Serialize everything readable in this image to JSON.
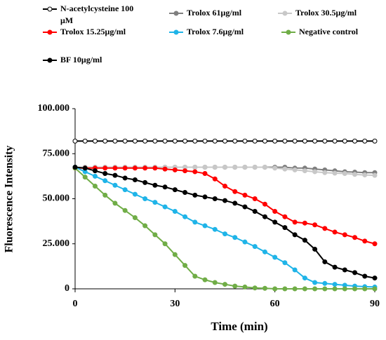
{
  "chart_data": {
    "type": "line",
    "ylabel": "Fluorescence Intensity",
    "xlabel": "Time (min)",
    "xlim": [
      0,
      90
    ],
    "xticks": [
      0,
      30,
      60,
      90
    ],
    "ylim": [
      0,
      100000
    ],
    "yticks": [
      0,
      {
        "value": 25000,
        "label": "25.000"
      },
      {
        "value": 50000,
        "label": "50.000"
      },
      {
        "value": 75000,
        "label": "75.000"
      },
      {
        "value": 100000,
        "label": "100.000"
      }
    ],
    "x": [
      0,
      3,
      6,
      9,
      12,
      15,
      18,
      21,
      24,
      27,
      30,
      33,
      36,
      39,
      42,
      45,
      48,
      51,
      54,
      57,
      60,
      63,
      66,
      69,
      72,
      75,
      78,
      81,
      84,
      87,
      90
    ],
    "series": [
      {
        "name": "N-acetylcysteine 100 μM",
        "color": "#ffffff",
        "values": [
          82000,
          82000,
          82000,
          82000,
          82000,
          82000,
          82000,
          82000,
          82000,
          82000,
          82000,
          82000,
          82000,
          82000,
          82000,
          82000,
          82000,
          82000,
          82000,
          82000,
          82000,
          82000,
          82000,
          82000,
          82000,
          82000,
          82000,
          82000,
          82000,
          82000,
          82000
        ]
      },
      {
        "name": "Trolox 61μg/ml",
        "color": "#7f7f7f",
        "values": [
          67500,
          67500,
          67500,
          67500,
          67500,
          67500,
          67500,
          67500,
          67500,
          67500,
          67500,
          67500,
          67500,
          67500,
          67500,
          67500,
          67500,
          67500,
          67500,
          67500,
          67500,
          67500,
          67000,
          67000,
          66500,
          66000,
          65500,
          65000,
          64800,
          64500,
          64500
        ]
      },
      {
        "name": "Trolox 30.5μg/ml",
        "color": "#c8c8c8",
        "values": [
          67500,
          67500,
          67500,
          67500,
          67500,
          67500,
          67500,
          67500,
          67500,
          67500,
          67500,
          67500,
          67500,
          67500,
          67500,
          67500,
          67500,
          67500,
          67500,
          67500,
          67000,
          66500,
          66000,
          65500,
          65000,
          64500,
          64200,
          64000,
          63500,
          63200,
          63000
        ]
      },
      {
        "name": "Trolox 15.25μg/ml",
        "color": "#ff0000",
        "values": [
          67000,
          67000,
          67000,
          67000,
          67000,
          67000,
          67000,
          67000,
          67000,
          66500,
          66000,
          65500,
          65000,
          64000,
          61000,
          57000,
          54000,
          52000,
          50000,
          47000,
          43000,
          40000,
          37000,
          36500,
          35500,
          33500,
          31500,
          30000,
          28500,
          26500,
          25000
        ]
      },
      {
        "name": "Trolox 7.6μg/ml",
        "color": "#1fb4e8",
        "values": [
          67500,
          65000,
          62500,
          60000,
          57500,
          55000,
          52500,
          50000,
          48000,
          45500,
          43000,
          40000,
          37000,
          35000,
          33000,
          30500,
          28500,
          26000,
          23500,
          20500,
          17500,
          14500,
          10500,
          6000,
          3500,
          3000,
          2500,
          2000,
          1500,
          1200,
          1000
        ]
      },
      {
        "name": "Negative control",
        "color": "#70ad47",
        "values": [
          67000,
          62000,
          57000,
          52000,
          47500,
          43500,
          39500,
          35000,
          30000,
          25000,
          19000,
          13000,
          7000,
          5000,
          3500,
          2500,
          1500,
          1000,
          500,
          300,
          0,
          0,
          0,
          0,
          0,
          0,
          0,
          0,
          0,
          0,
          0
        ]
      },
      {
        "name": "BF 10μg/ml",
        "color": "#000000",
        "values": [
          67500,
          67000,
          65500,
          64000,
          63000,
          61500,
          60500,
          59000,
          57500,
          56500,
          55000,
          53500,
          52000,
          51000,
          50000,
          49000,
          47500,
          45500,
          43000,
          40000,
          37000,
          34000,
          30000,
          27000,
          22000,
          15000,
          12000,
          10500,
          9000,
          7000,
          6000
        ]
      }
    ]
  }
}
